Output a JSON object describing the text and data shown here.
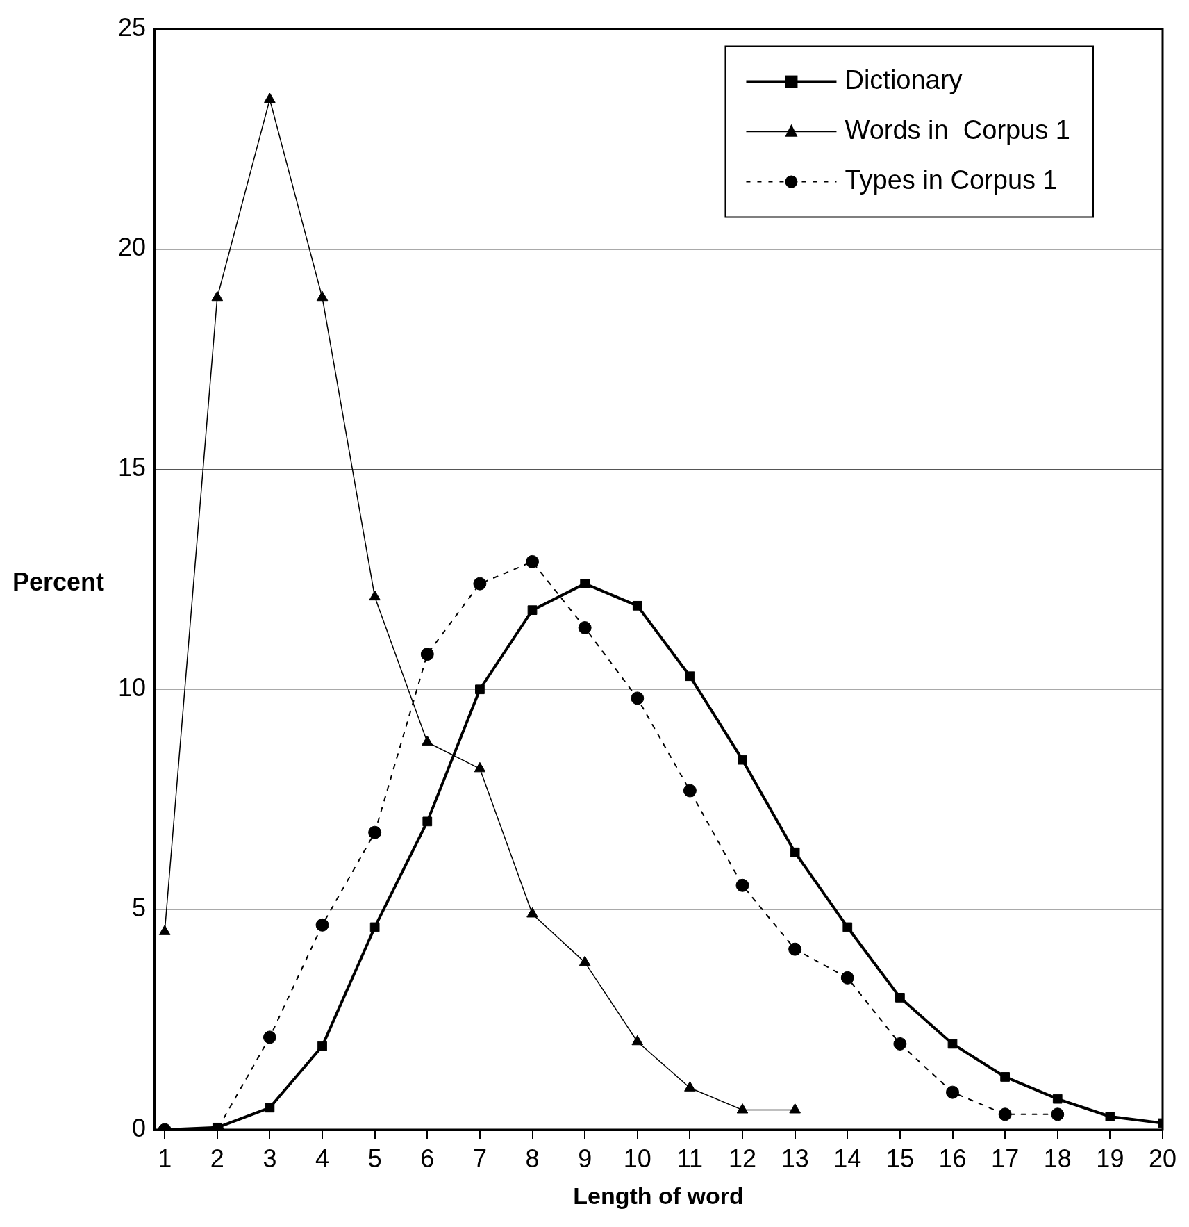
{
  "chart_data": {
    "type": "line",
    "xlabel": "Length of word",
    "ylabel": "Percent",
    "x": [
      1,
      2,
      3,
      4,
      5,
      6,
      7,
      8,
      9,
      10,
      11,
      12,
      13,
      14,
      15,
      16,
      17,
      18,
      19,
      20
    ],
    "xlim": [
      0.8,
      20
    ],
    "xticks": [
      1,
      2,
      3,
      4,
      5,
      6,
      7,
      8,
      9,
      10,
      11,
      12,
      13,
      14,
      15,
      16,
      17,
      18,
      19,
      20
    ],
    "ylim": [
      0,
      25
    ],
    "yticks": [
      0,
      5,
      10,
      15,
      20,
      25
    ],
    "grid": "y",
    "legend": "top right",
    "series": [
      {
        "name": "Dictionary",
        "color": "#000000",
        "marker": "square",
        "line_style": "solid",
        "values": [
          0,
          0.05,
          0.5,
          1.9,
          4.6,
          7,
          10,
          11.8,
          12.4,
          11.9,
          10.3,
          8.4,
          6.3,
          4.6,
          3,
          1.95,
          1.2,
          0.7,
          0.3,
          0.15
        ]
      },
      {
        "name": "Words in  Corpus 1",
        "color": "#000000",
        "marker": "triangle",
        "line_style": "solid",
        "values": [
          4.5,
          18.9,
          23.4,
          18.9,
          12.1,
          8.8,
          8.2,
          4.9,
          3.8,
          2,
          0.95,
          0.45,
          0.45,
          null,
          null,
          null,
          null,
          null,
          null,
          null
        ]
      },
      {
        "name": "Types in Corpus 1",
        "color": "#000000",
        "marker": "circle",
        "line_style": "dotted",
        "values": [
          0,
          0,
          2.1,
          4.65,
          6.75,
          10.8,
          12.4,
          12.9,
          11.4,
          9.8,
          7.7,
          5.55,
          4.1,
          3.45,
          1.95,
          0.85,
          0.35,
          0.35,
          null,
          null
        ]
      }
    ]
  }
}
